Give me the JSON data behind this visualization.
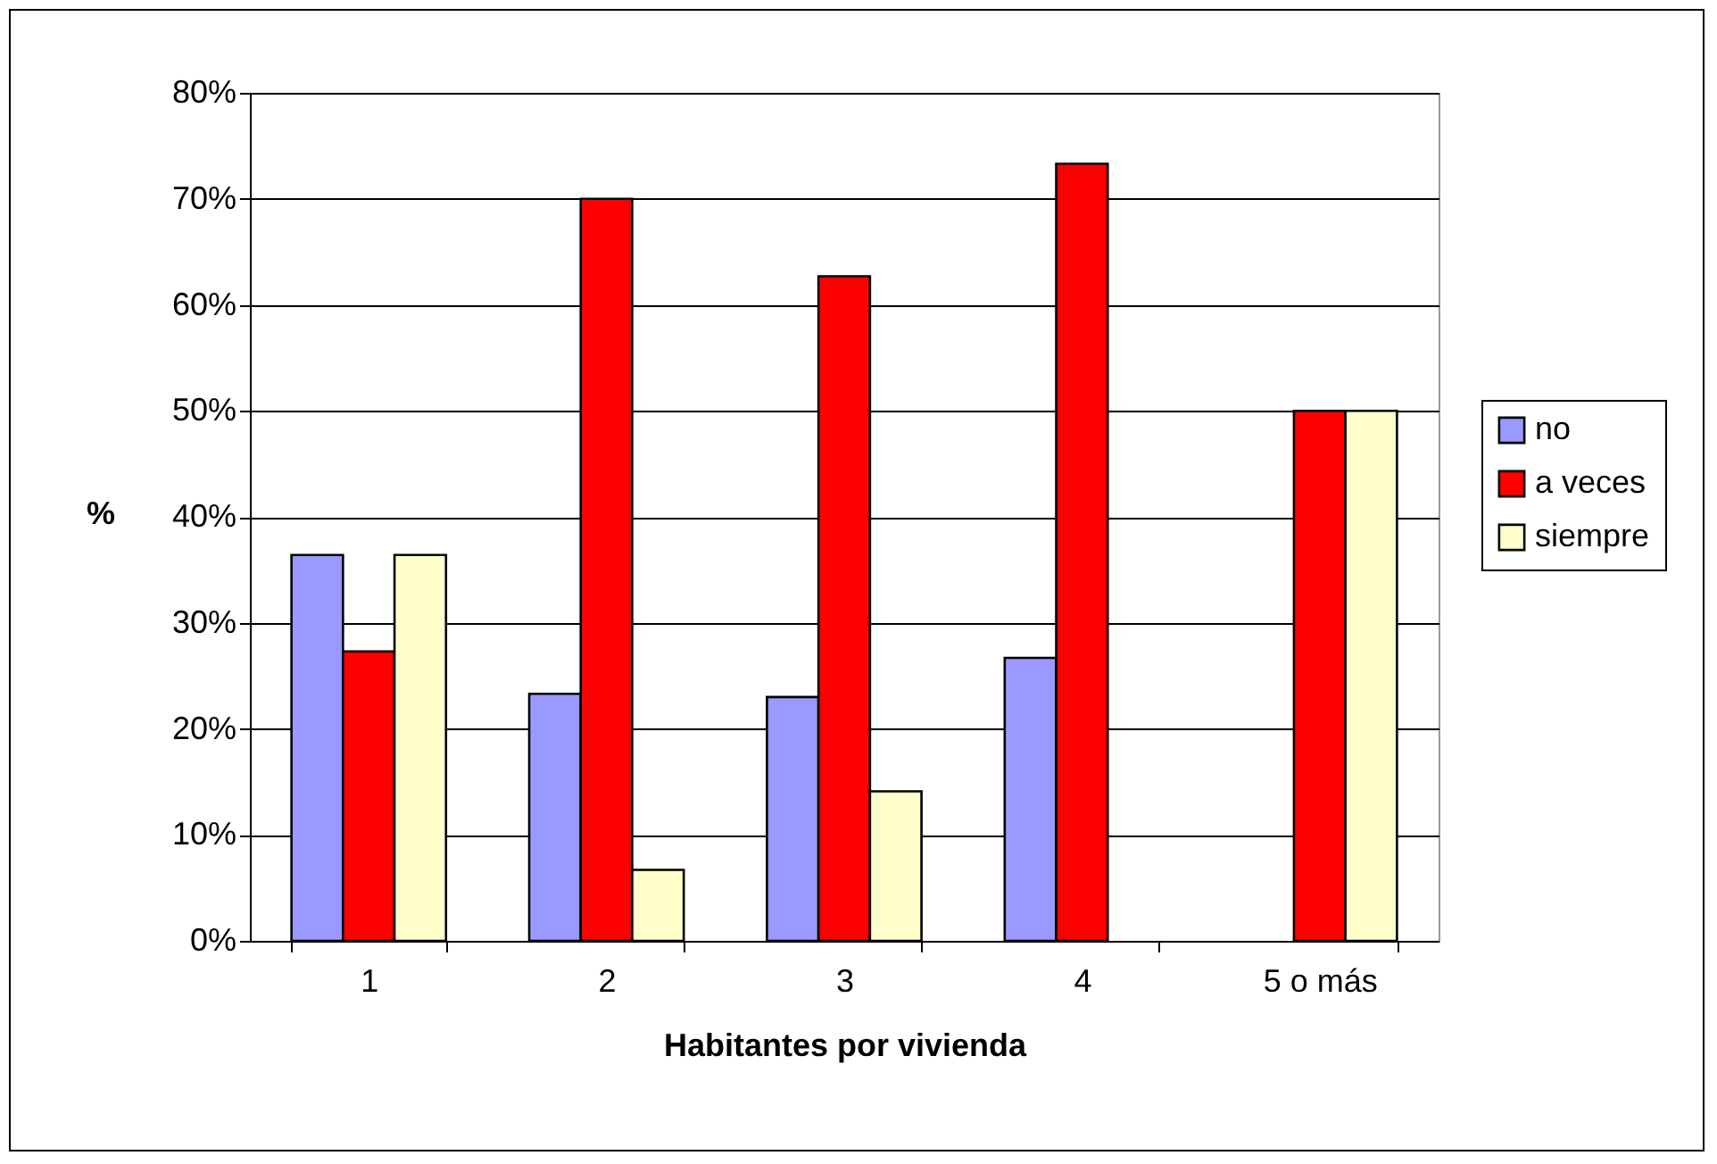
{
  "chart_data": {
    "type": "bar",
    "xlabel": "Habitantes por vivienda",
    "ylabel": "%",
    "categories": [
      "1",
      "2",
      "3",
      "4",
      "5 o más"
    ],
    "series": [
      {
        "name": "no",
        "color": "#9999ff",
        "values": [
          36.4,
          23.3,
          23.0,
          26.7,
          null
        ]
      },
      {
        "name": "a veces",
        "color": "#ff0000",
        "values": [
          27.3,
          70.0,
          62.7,
          73.3,
          50.0
        ]
      },
      {
        "name": "siempre",
        "color": "#ffffcc",
        "values": [
          36.4,
          6.7,
          14.1,
          null,
          50.0
        ]
      }
    ],
    "ylim": [
      0,
      80
    ],
    "yticks": [
      {
        "value": 0,
        "label": "0%"
      },
      {
        "value": 10,
        "label": "10%"
      },
      {
        "value": 20,
        "label": "20%"
      },
      {
        "value": 30,
        "label": "30%"
      },
      {
        "value": 40,
        "label": "40%"
      },
      {
        "value": 50,
        "label": "50%"
      },
      {
        "value": 60,
        "label": "60%"
      },
      {
        "value": 70,
        "label": "70%"
      },
      {
        "value": 80,
        "label": "80%"
      }
    ],
    "grid": "y",
    "legend": "right"
  }
}
